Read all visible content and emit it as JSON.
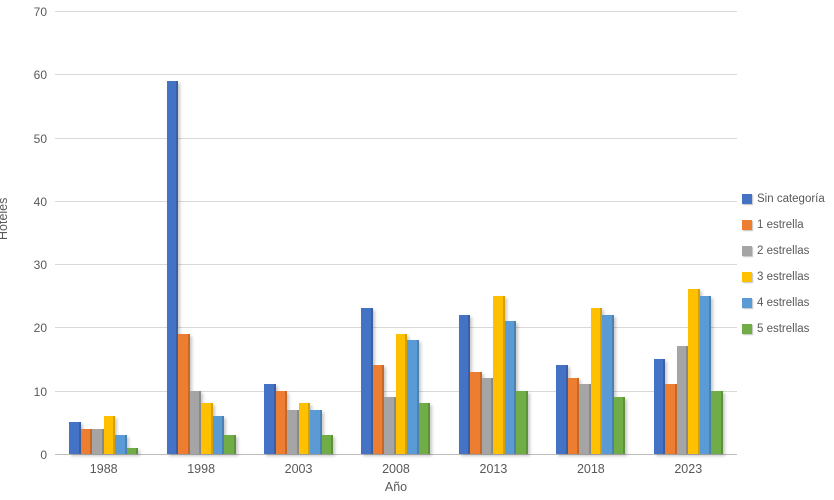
{
  "chart_data": {
    "type": "bar",
    "title": "",
    "xlabel": "Año",
    "ylabel": "Hoteles",
    "categories": [
      "1988",
      "1998",
      "2003",
      "2008",
      "2013",
      "2018",
      "2023"
    ],
    "series": [
      {
        "name": "Sin categoría",
        "color": "#4472C4",
        "values": [
          5,
          59,
          11,
          23,
          22,
          14,
          15
        ]
      },
      {
        "name": "1 estrella",
        "color": "#ED7D31",
        "values": [
          4,
          19,
          10,
          14,
          13,
          12,
          11
        ]
      },
      {
        "name": "2 estrellas",
        "color": "#A5A5A5",
        "values": [
          4,
          10,
          7,
          9,
          12,
          11,
          17
        ]
      },
      {
        "name": "3 estrellas",
        "color": "#FFC000",
        "values": [
          6,
          8,
          8,
          19,
          25,
          23,
          26
        ]
      },
      {
        "name": "4 estrellas",
        "color": "#5B9BD5",
        "values": [
          3,
          6,
          7,
          18,
          21,
          22,
          25
        ]
      },
      {
        "name": "5 estrellas",
        "color": "#70AD47",
        "values": [
          1,
          3,
          3,
          8,
          10,
          9,
          10
        ]
      }
    ],
    "ylim": [
      0,
      70
    ],
    "ytick_step": 10,
    "grid": true,
    "legend_position": "right",
    "colors": {
      "gridline": "#d9d9d9",
      "axis_line": "#bdbdbd",
      "text": "#595959"
    }
  }
}
